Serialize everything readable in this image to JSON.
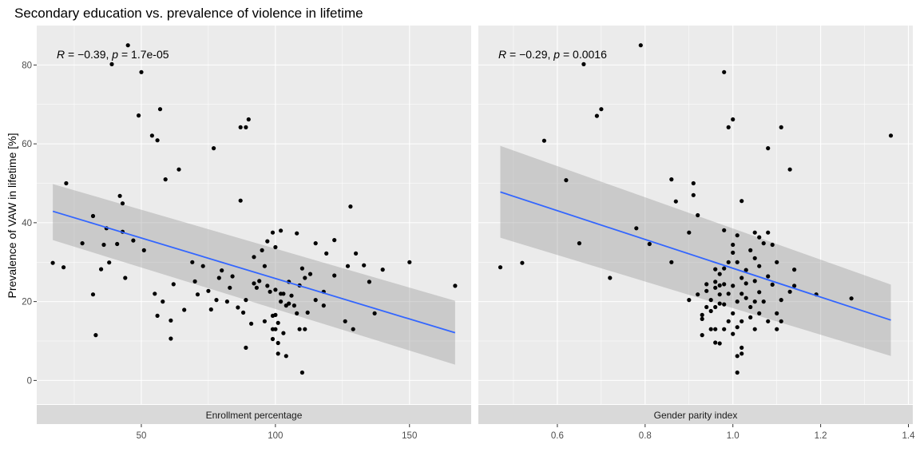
{
  "title": "Secondary education vs. prevalence of violence in lifetime",
  "ylabel": "Prevalence of VAW in lifetime [%]",
  "colors": {
    "panel_bg": "#ebebeb",
    "grid_major": "#ffffff",
    "strip_bg": "#d9d9d9",
    "point": "#000000",
    "fit_line": "#3366ff",
    "ribbon": "#999999"
  },
  "y_axis": {
    "range": [
      -6,
      90
    ],
    "ticks": [
      0,
      20,
      40,
      60,
      80
    ],
    "tick_labels": [
      "0",
      "20",
      "40",
      "60",
      "80"
    ]
  },
  "chart_data": [
    {
      "type": "scatter",
      "facet_label": "Enrollment percentage",
      "stat_r": "−0.39",
      "stat_p": "1.7e-05",
      "x_range": [
        11,
        173
      ],
      "x_ticks": [
        50,
        100,
        150
      ],
      "x_tick_labels": [
        "50",
        "100",
        "150"
      ],
      "grid": true,
      "fit": {
        "x": [
          17,
          167
        ],
        "y": [
          42.9,
          12.1
        ],
        "ci_lower": [
          35.6,
          4.0
        ],
        "ci_upper": [
          49.8,
          20.2
        ]
      },
      "points": [
        [
          17,
          29.8
        ],
        [
          21,
          28.7
        ],
        [
          22,
          50.0
        ],
        [
          28,
          34.8
        ],
        [
          32,
          41.7
        ],
        [
          32,
          21.8
        ],
        [
          33,
          11.5
        ],
        [
          35,
          28.2
        ],
        [
          36,
          34.4
        ],
        [
          37,
          38.6
        ],
        [
          38,
          29.9
        ],
        [
          39,
          80.2
        ],
        [
          41,
          34.6
        ],
        [
          42,
          46.8
        ],
        [
          43,
          37.7
        ],
        [
          43,
          44.9
        ],
        [
          44,
          26.0
        ],
        [
          45,
          85.0
        ],
        [
          47,
          35.5
        ],
        [
          49,
          67.2
        ],
        [
          50,
          78.2
        ],
        [
          51,
          33.0
        ],
        [
          54,
          62.1
        ],
        [
          55,
          22.0
        ],
        [
          56,
          60.9
        ],
        [
          56,
          16.4
        ],
        [
          57,
          68.8
        ],
        [
          58,
          20.0
        ],
        [
          59,
          51.0
        ],
        [
          61,
          10.6
        ],
        [
          61,
          15.2
        ],
        [
          62,
          24.4
        ],
        [
          64,
          53.5
        ],
        [
          66,
          17.9
        ],
        [
          69,
          30.0
        ],
        [
          70,
          25.1
        ],
        [
          71,
          21.8
        ],
        [
          73,
          29.0
        ],
        [
          75,
          22.7
        ],
        [
          76,
          18.0
        ],
        [
          77,
          58.9
        ],
        [
          78,
          20.4
        ],
        [
          79,
          26.0
        ],
        [
          80,
          27.9
        ],
        [
          82,
          20.0
        ],
        [
          83,
          23.5
        ],
        [
          84,
          26.4
        ],
        [
          86,
          18.5
        ],
        [
          87,
          45.6
        ],
        [
          87,
          64.2
        ],
        [
          88,
          17.2
        ],
        [
          89,
          64.2
        ],
        [
          89,
          20.4
        ],
        [
          89,
          8.3
        ],
        [
          90,
          66.2
        ],
        [
          91,
          14.4
        ],
        [
          92,
          31.3
        ],
        [
          92,
          24.6
        ],
        [
          93,
          23.5
        ],
        [
          94,
          25.2
        ],
        [
          95,
          33.0
        ],
        [
          96,
          15.0
        ],
        [
          96,
          29.0
        ],
        [
          97,
          24.0
        ],
        [
          97,
          35.3
        ],
        [
          98,
          22.5
        ],
        [
          99,
          37.5
        ],
        [
          99,
          16.4
        ],
        [
          99,
          13.0
        ],
        [
          99,
          10.5
        ],
        [
          100,
          33.8
        ],
        [
          100,
          23.0
        ],
        [
          100,
          16.6
        ],
        [
          100,
          13.0
        ],
        [
          101,
          9.5
        ],
        [
          101,
          6.8
        ],
        [
          101,
          14.6
        ],
        [
          102,
          38.0
        ],
        [
          102,
          22.0
        ],
        [
          102,
          20.0
        ],
        [
          103,
          12.0
        ],
        [
          103,
          22.0
        ],
        [
          104,
          6.2
        ],
        [
          104,
          19.0
        ],
        [
          105,
          25.0
        ],
        [
          105,
          19.5
        ],
        [
          106,
          21.5
        ],
        [
          107,
          19.0
        ],
        [
          108,
          37.3
        ],
        [
          108,
          17.0
        ],
        [
          109,
          13.0
        ],
        [
          109,
          24.1
        ],
        [
          110,
          2.0
        ],
        [
          110,
          28.4
        ],
        [
          111,
          26.0
        ],
        [
          111,
          13.0
        ],
        [
          112,
          17.2
        ],
        [
          113,
          27.0
        ],
        [
          115,
          34.8
        ],
        [
          115,
          20.4
        ],
        [
          118,
          22.5
        ],
        [
          118,
          19.0
        ],
        [
          119,
          32.2
        ],
        [
          122,
          35.6
        ],
        [
          122,
          26.6
        ],
        [
          126,
          15.0
        ],
        [
          127,
          29.0
        ],
        [
          128,
          44.1
        ],
        [
          129,
          13.0
        ],
        [
          130,
          32.2
        ],
        [
          133,
          29.2
        ],
        [
          135,
          25.0
        ],
        [
          137,
          17.0
        ],
        [
          140,
          28.1
        ],
        [
          150,
          30.0
        ],
        [
          167,
          24.0
        ]
      ]
    },
    {
      "type": "scatter",
      "facet_label": "Gender parity index",
      "stat_r": "−0.29",
      "stat_p": "0.0016",
      "x_range": [
        0.42,
        1.41
      ],
      "x_ticks": [
        0.6,
        0.8,
        1.0,
        1.2,
        1.4
      ],
      "x_tick_labels": [
        "0.6",
        "0.8",
        "1.0",
        "1.2",
        "1.4"
      ],
      "grid": true,
      "fit": {
        "x": [
          0.47,
          1.36
        ],
        "y": [
          47.8,
          15.3
        ],
        "ci_lower": [
          36.2,
          6.2
        ],
        "ci_upper": [
          59.5,
          24.3
        ]
      },
      "points": [
        [
          0.47,
          28.7
        ],
        [
          0.52,
          29.8
        ],
        [
          0.57,
          60.8
        ],
        [
          0.62,
          50.8
        ],
        [
          0.65,
          34.8
        ],
        [
          0.66,
          80.2
        ],
        [
          0.69,
          67.1
        ],
        [
          0.7,
          68.8
        ],
        [
          0.72,
          26.0
        ],
        [
          0.79,
          85.0
        ],
        [
          0.78,
          38.6
        ],
        [
          0.81,
          34.6
        ],
        [
          0.86,
          30.0
        ],
        [
          0.86,
          51.0
        ],
        [
          0.87,
          45.4
        ],
        [
          0.9,
          37.5
        ],
        [
          0.9,
          20.4
        ],
        [
          0.91,
          50.0
        ],
        [
          0.91,
          47.0
        ],
        [
          0.92,
          41.9
        ],
        [
          0.92,
          21.8
        ],
        [
          0.93,
          15.6
        ],
        [
          0.93,
          11.5
        ],
        [
          0.93,
          16.6
        ],
        [
          0.94,
          24.4
        ],
        [
          0.94,
          18.6
        ],
        [
          0.94,
          22.7
        ],
        [
          0.95,
          20.4
        ],
        [
          0.95,
          13.0
        ],
        [
          0.95,
          17.6
        ],
        [
          0.96,
          28.2
        ],
        [
          0.96,
          25.0
        ],
        [
          0.96,
          23.5
        ],
        [
          0.96,
          18.6
        ],
        [
          0.96,
          13.0
        ],
        [
          0.96,
          9.6
        ],
        [
          0.97,
          27.0
        ],
        [
          0.97,
          24.1
        ],
        [
          0.97,
          21.8
        ],
        [
          0.97,
          19.5
        ],
        [
          0.97,
          9.4
        ],
        [
          0.98,
          38.1
        ],
        [
          0.98,
          28.4
        ],
        [
          0.98,
          24.4
        ],
        [
          0.98,
          19.3
        ],
        [
          0.98,
          13.0
        ],
        [
          0.98,
          78.2
        ],
        [
          0.99,
          64.2
        ],
        [
          0.99,
          30.0
        ],
        [
          0.99,
          22.0
        ],
        [
          0.99,
          15.0
        ],
        [
          1.0,
          66.2
        ],
        [
          1.0,
          32.4
        ],
        [
          1.0,
          34.4
        ],
        [
          1.0,
          24.0
        ],
        [
          1.0,
          17.0
        ],
        [
          1.0,
          11.8
        ],
        [
          1.01,
          36.8
        ],
        [
          1.01,
          30.0
        ],
        [
          1.01,
          20.0
        ],
        [
          1.01,
          13.5
        ],
        [
          1.01,
          6.2
        ],
        [
          1.01,
          2.0
        ],
        [
          1.02,
          45.5
        ],
        [
          1.02,
          26.0
        ],
        [
          1.02,
          22.0
        ],
        [
          1.02,
          15.0
        ],
        [
          1.02,
          8.3
        ],
        [
          1.02,
          6.8
        ],
        [
          1.03,
          28.0
        ],
        [
          1.03,
          24.6
        ],
        [
          1.03,
          20.9
        ],
        [
          1.04,
          33.0
        ],
        [
          1.04,
          18.6
        ],
        [
          1.04,
          16.0
        ],
        [
          1.05,
          37.5
        ],
        [
          1.05,
          31.0
        ],
        [
          1.05,
          25.2
        ],
        [
          1.05,
          20.0
        ],
        [
          1.05,
          13.0
        ],
        [
          1.06,
          36.3
        ],
        [
          1.06,
          29.0
        ],
        [
          1.06,
          22.4
        ],
        [
          1.06,
          17.0
        ],
        [
          1.07,
          34.8
        ],
        [
          1.07,
          20.0
        ],
        [
          1.08,
          37.5
        ],
        [
          1.08,
          26.4
        ],
        [
          1.08,
          15.0
        ],
        [
          1.08,
          58.9
        ],
        [
          1.09,
          34.4
        ],
        [
          1.09,
          24.3
        ],
        [
          1.1,
          30.0
        ],
        [
          1.1,
          17.0
        ],
        [
          1.1,
          13.0
        ],
        [
          1.11,
          64.2
        ],
        [
          1.11,
          20.4
        ],
        [
          1.11,
          15.0
        ],
        [
          1.13,
          53.5
        ],
        [
          1.13,
          22.5
        ],
        [
          1.14,
          28.1
        ],
        [
          1.14,
          24.0
        ],
        [
          1.19,
          21.8
        ],
        [
          1.27,
          20.8
        ],
        [
          1.36,
          62.1
        ]
      ]
    }
  ]
}
